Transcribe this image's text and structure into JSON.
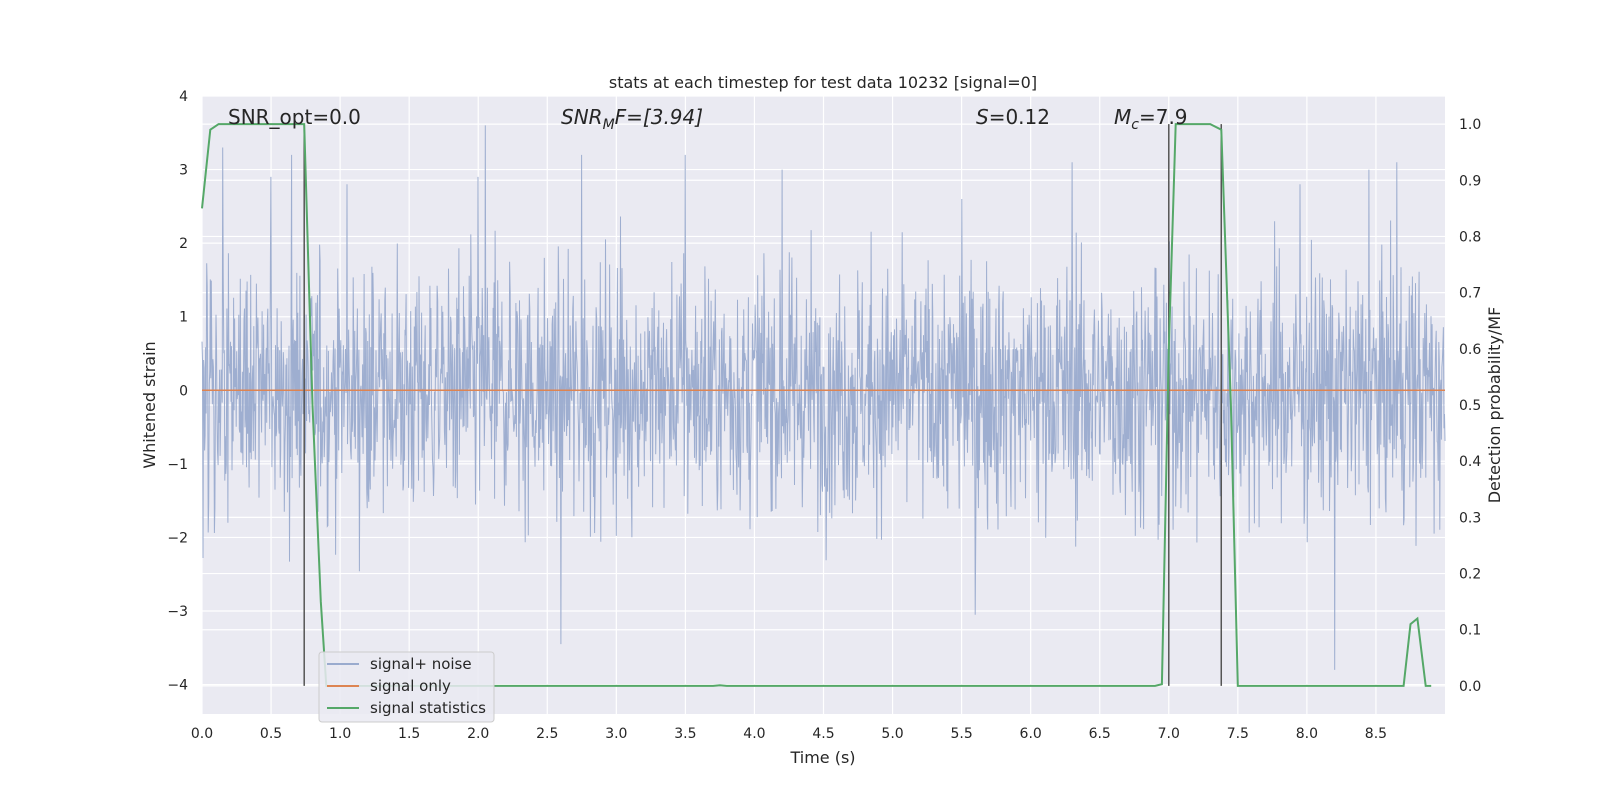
{
  "chart_data": {
    "type": "line",
    "title": "stats at each timestep for test data 10232 [signal=0]",
    "xlabel": "Time (s)",
    "ylabel": "Whitened strain",
    "y2label": "Detection probability/MF",
    "xlim": [
      0,
      9.0
    ],
    "ylim": [
      -4.4,
      4.0
    ],
    "y2lim": [
      -0.05,
      1.05
    ],
    "grid": true,
    "legend_position": "lower-left",
    "x_ticks": [
      "0.0",
      "0.5",
      "1.0",
      "1.5",
      "2.0",
      "2.5",
      "3.0",
      "3.5",
      "4.0",
      "4.5",
      "5.0",
      "5.5",
      "6.0",
      "6.5",
      "7.0",
      "7.5",
      "8.0",
      "8.5"
    ],
    "x_tick_values": [
      0,
      0.5,
      1,
      1.5,
      2,
      2.5,
      3,
      3.5,
      4,
      4.5,
      5,
      5.5,
      6,
      6.5,
      7,
      7.5,
      8,
      8.5
    ],
    "y_ticks": [
      "−4",
      "−3",
      "−2",
      "−1",
      "0",
      "1",
      "2",
      "3",
      "4"
    ],
    "y_tick_values": [
      -4,
      -3,
      -2,
      -1,
      0,
      1,
      2,
      3,
      4
    ],
    "y2_ticks": [
      "0.0",
      "0.1",
      "0.2",
      "0.3",
      "0.4",
      "0.5",
      "0.6",
      "0.7",
      "0.8",
      "0.9",
      "1.0"
    ],
    "y2_tick_values": [
      0,
      0.1,
      0.2,
      0.3,
      0.4,
      0.5,
      0.6,
      0.7,
      0.8,
      0.9,
      1.0
    ],
    "annotations": {
      "snr_opt": "SNR_opt=0.0",
      "snr_mf_main": "SNR",
      "snr_mf_sub": "M",
      "snr_mf_rest": "F=[3.94]",
      "s_main": "S",
      "s_rest": "=0.12",
      "mc_main": "M",
      "mc_sub": "c",
      "mc_rest": "=7.9"
    },
    "series": [
      {
        "name": "signal+ noise",
        "color": "#9aabce",
        "description_points": {
          "x_range": [
            0,
            9.0
          ],
          "typical_abs_amplitude": 1.5,
          "peaks": [
            [
              0.15,
              3.3
            ],
            [
              0.5,
              2.9
            ],
            [
              0.65,
              3.2
            ],
            [
              1.05,
              2.8
            ],
            [
              2.0,
              2.9
            ],
            [
              2.05,
              3.6
            ],
            [
              2.6,
              -3.45
            ],
            [
              2.75,
              3.2
            ],
            [
              3.5,
              3.2
            ],
            [
              4.2,
              3.0
            ],
            [
              5.5,
              2.6
            ],
            [
              5.6,
              -3.05
            ],
            [
              6.3,
              3.1
            ],
            [
              7.95,
              2.8
            ],
            [
              8.2,
              -3.8
            ],
            [
              8.45,
              3.0
            ],
            [
              8.65,
              3.1
            ]
          ]
        }
      },
      {
        "name": "signal only",
        "color": "#dd8452",
        "x": [
          0,
          9.0
        ],
        "y": [
          0,
          0
        ]
      },
      {
        "name": "signal statistics",
        "color": "#55a868",
        "axis": "right",
        "x": [
          0,
          0.06,
          0.12,
          0.3,
          0.5,
          0.7,
          0.74,
          0.8,
          0.86,
          0.9,
          3.7,
          3.75,
          3.8,
          6.9,
          6.95,
          7.0,
          7.05,
          7.1,
          7.3,
          7.38,
          7.45,
          7.5,
          8.7,
          8.75,
          8.8,
          8.86,
          8.9
        ],
        "y": [
          0.85,
          0.99,
          1.0,
          1.0,
          1.0,
          1.0,
          1.0,
          0.5,
          0.15,
          0.0,
          0.0,
          0.001,
          0.0,
          0.0,
          0.003,
          0.6,
          1.0,
          1.0,
          1.0,
          0.99,
          0.5,
          0.0,
          0.0,
          0.11,
          0.12,
          0.0,
          0.0
        ]
      }
    ],
    "vertical_lines": [
      0.74,
      7.0,
      7.38
    ],
    "vertical_line_color": "#555555",
    "background": "#eaeaf2",
    "grid_color": "#ffffff"
  },
  "legend": {
    "items": [
      "signal+ noise",
      "signal only",
      "signal statistics"
    ]
  }
}
